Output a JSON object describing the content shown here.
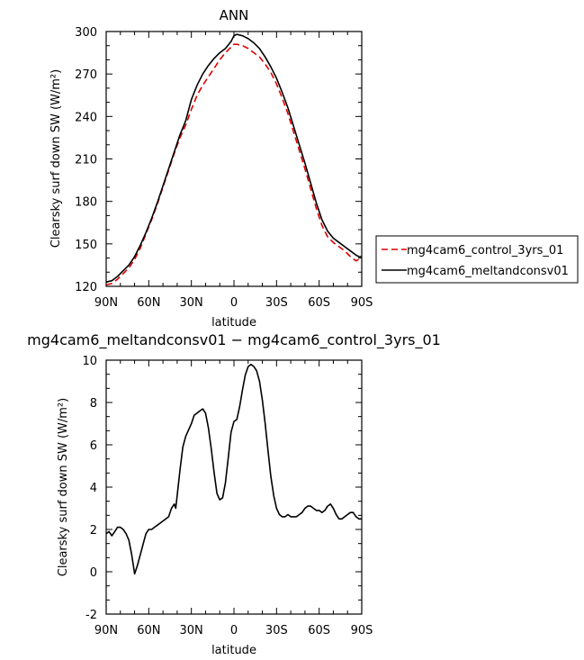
{
  "chart_data": [
    {
      "type": "line",
      "title": "ANN",
      "xlabel": "latitude",
      "ylabel": "Clearsky surf down SW (W/m²)",
      "x_tick_labels": [
        "90N",
        "60N",
        "30N",
        "0",
        "30S",
        "60S",
        "90S"
      ],
      "x_tick_values": [
        90,
        60,
        30,
        0,
        -30,
        -60,
        -90
      ],
      "xlim": [
        90,
        -90
      ],
      "ylim": [
        120,
        300
      ],
      "y_ticks": [
        120,
        150,
        180,
        210,
        240,
        270,
        300
      ],
      "legend": "outside-right",
      "x": [
        90,
        86,
        82,
        78,
        74,
        70,
        66,
        62,
        58,
        54,
        50,
        46,
        42,
        38,
        34,
        30,
        26,
        22,
        18,
        14,
        10,
        6,
        2,
        0,
        -2,
        -6,
        -10,
        -14,
        -18,
        -22,
        -26,
        -30,
        -34,
        -38,
        -42,
        -46,
        -50,
        -54,
        -58,
        -62,
        -66,
        -70,
        -74,
        -78,
        -82,
        -86,
        -88,
        -90
      ],
      "series": [
        {
          "name": "mg4cam6_control_3yrs_01",
          "color": "#e00000",
          "dash": "dashed",
          "values": [
            121,
            122,
            125,
            129,
            133,
            139,
            147,
            157,
            167,
            178,
            190,
            202,
            214,
            225,
            234,
            245,
            255,
            262,
            268,
            274,
            280,
            285,
            289,
            291,
            291,
            290,
            288,
            285,
            282,
            277,
            271,
            263,
            253,
            242,
            229,
            216,
            203,
            189,
            175,
            163,
            155,
            151,
            148,
            145,
            141,
            138,
            139,
            139
          ]
        },
        {
          "name": "mg4cam6_meltandconsv01",
          "color": "#000000",
          "dash": "solid",
          "values": [
            123,
            124,
            127,
            131,
            135,
            141,
            149,
            158,
            168,
            179,
            191,
            203,
            215,
            227,
            237,
            252,
            262,
            270,
            276,
            281,
            285,
            288,
            293,
            297,
            298,
            297,
            295,
            292,
            288,
            282,
            275,
            267,
            257,
            246,
            233,
            220,
            207,
            193,
            179,
            167,
            159,
            154,
            151,
            148,
            145,
            142,
            141,
            141
          ]
        }
      ]
    },
    {
      "type": "line",
      "title": "mg4cam6_meltandconsv01 − mg4cam6_control_3yrs_01",
      "xlabel": "latitude",
      "ylabel": "Clearsky surf down SW (W/m²)",
      "x_tick_labels": [
        "90N",
        "60N",
        "30N",
        "0",
        "30S",
        "60S",
        "90S"
      ],
      "x_tick_values": [
        90,
        60,
        30,
        0,
        -30,
        -60,
        -90
      ],
      "xlim": [
        90,
        -90
      ],
      "ylim": [
        -2,
        10
      ],
      "y_ticks": [
        -2,
        0,
        2,
        4,
        6,
        8,
        10
      ],
      "series": [
        {
          "name": "",
          "color": "#000000",
          "dash": "solid",
          "x": [
            90,
            88,
            86,
            84,
            82,
            80,
            78,
            76,
            74,
            72,
            70,
            68,
            66,
            64,
            62,
            60,
            58,
            56,
            54,
            52,
            50,
            48,
            46,
            44,
            42,
            41,
            40,
            38,
            36,
            34,
            32,
            30,
            28,
            26,
            24,
            22,
            20,
            18,
            16,
            14,
            12,
            10,
            8,
            6,
            4,
            2,
            0,
            -2,
            -4,
            -6,
            -8,
            -10,
            -12,
            -14,
            -16,
            -18,
            -20,
            -22,
            -24,
            -26,
            -28,
            -30,
            -32,
            -34,
            -36,
            -38,
            -40,
            -42,
            -44,
            -46,
            -48,
            -50,
            -52,
            -54,
            -56,
            -58,
            -60,
            -62,
            -64,
            -66,
            -68,
            -70,
            -72,
            -74,
            -76,
            -78,
            -80,
            -82,
            -84,
            -86,
            -88,
            -90
          ],
          "values": [
            1.8,
            1.9,
            1.7,
            1.9,
            2.1,
            2.1,
            2.0,
            1.8,
            1.5,
            0.8,
            -0.1,
            0.3,
            0.8,
            1.3,
            1.8,
            2.0,
            2.0,
            2.1,
            2.2,
            2.3,
            2.4,
            2.5,
            2.6,
            3.0,
            3.2,
            3.0,
            3.6,
            4.8,
            5.9,
            6.4,
            6.7,
            7.0,
            7.4,
            7.5,
            7.6,
            7.7,
            7.5,
            6.8,
            5.8,
            4.7,
            3.7,
            3.4,
            3.5,
            4.2,
            5.4,
            6.6,
            7.1,
            7.2,
            7.8,
            8.6,
            9.3,
            9.7,
            9.8,
            9.7,
            9.5,
            9.0,
            8.1,
            7.0,
            5.7,
            4.5,
            3.6,
            3.0,
            2.7,
            2.6,
            2.6,
            2.7,
            2.6,
            2.6,
            2.6,
            2.7,
            2.8,
            3.0,
            3.1,
            3.1,
            3.0,
            2.9,
            2.9,
            2.8,
            2.9,
            3.1,
            3.2,
            3.0,
            2.7,
            2.5,
            2.5,
            2.6,
            2.7,
            2.8,
            2.8,
            2.6,
            2.5,
            2.5
          ]
        }
      ]
    }
  ]
}
